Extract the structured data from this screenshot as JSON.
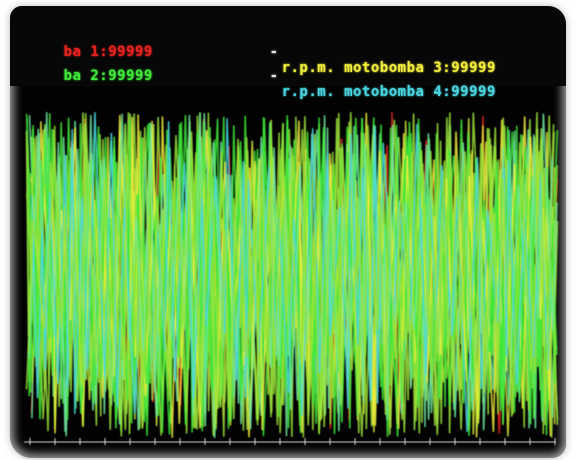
{
  "legend": [
    {
      "id": 1,
      "text": "ba 1:99999",
      "color": "#e8231f"
    },
    {
      "id": 2,
      "text": "ba 2:99999",
      "color": "#3fe83a"
    },
    {
      "id": 3,
      "dash": "-",
      "label": "r.p.m. motobomba 3",
      "value": "99999",
      "color": "#f2ee3c"
    },
    {
      "id": 4,
      "dash": "-",
      "label": "r.p.m. motobomba 4",
      "value": "99999",
      "color": "#4ad6e0"
    }
  ],
  "chart_data": {
    "type": "line",
    "series": [
      {
        "color": "#e8231f"
      },
      {
        "color": "#3fe83a"
      },
      {
        "color": "#f2ee3c"
      },
      {
        "color": "#4ad6e0"
      }
    ],
    "grid": false,
    "legend_placement": "top"
  },
  "colors": {
    "background": "#020202",
    "axis": "#d8d8d8",
    "dash": "#e0e0e0"
  }
}
